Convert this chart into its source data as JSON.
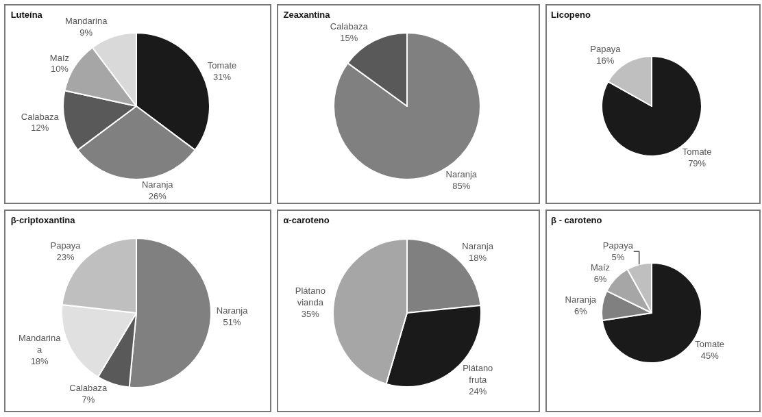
{
  "chart_data": [
    {
      "type": "pie",
      "title": "Luteína",
      "categories": [
        "Tomate",
        "Naranja",
        "Calabaza",
        "Maíz",
        "Mandarina"
      ],
      "values": [
        31,
        26,
        12,
        10,
        9
      ],
      "value_labels": [
        "31%",
        "26%",
        "12%",
        "10%",
        "9%"
      ],
      "colors": [
        "#1a1a1a",
        "#808080",
        "#595959",
        "#a6a6a6",
        "#d9d9d9"
      ]
    },
    {
      "type": "pie",
      "title": "Zeaxantina",
      "categories": [
        "Naranja",
        "Calabaza"
      ],
      "values": [
        85,
        15
      ],
      "value_labels": [
        "85%",
        "15%"
      ],
      "colors": [
        "#808080",
        "#595959"
      ]
    },
    {
      "type": "pie",
      "title": "Licopeno",
      "categories": [
        "Tomate",
        "Papaya"
      ],
      "values": [
        79,
        16
      ],
      "value_labels": [
        "79%",
        "16%"
      ],
      "colors": [
        "#1a1a1a",
        "#bfbfbf"
      ]
    },
    {
      "type": "pie",
      "title": "β-criptoxantina",
      "categories": [
        "Naranja",
        "Calabaza",
        "Mandarina a",
        "Papaya"
      ],
      "values": [
        51,
        7,
        18,
        23
      ],
      "value_labels": [
        "51%",
        "7%",
        "18%",
        "23%"
      ],
      "colors": [
        "#808080",
        "#595959",
        "#e0e0e0",
        "#bfbfbf"
      ]
    },
    {
      "type": "pie",
      "title": "α-caroteno",
      "categories": [
        "Naranja",
        "Plátano fruta",
        "Plátano vianda"
      ],
      "values": [
        18,
        24,
        35
      ],
      "value_labels": [
        "18%",
        "24%",
        "35%"
      ],
      "colors": [
        "#808080",
        "#1a1a1a",
        "#a6a6a6"
      ]
    },
    {
      "type": "pie",
      "title": "β - caroteno",
      "categories": [
        "Tomate",
        "Naranja",
        "Maíz",
        "Papaya"
      ],
      "values": [
        45,
        6,
        6,
        5
      ],
      "value_labels": [
        "45%",
        "6%",
        "6%",
        "5%"
      ],
      "colors": [
        "#1a1a1a",
        "#808080",
        "#a6a6a6",
        "#bfbfbf"
      ]
    }
  ]
}
